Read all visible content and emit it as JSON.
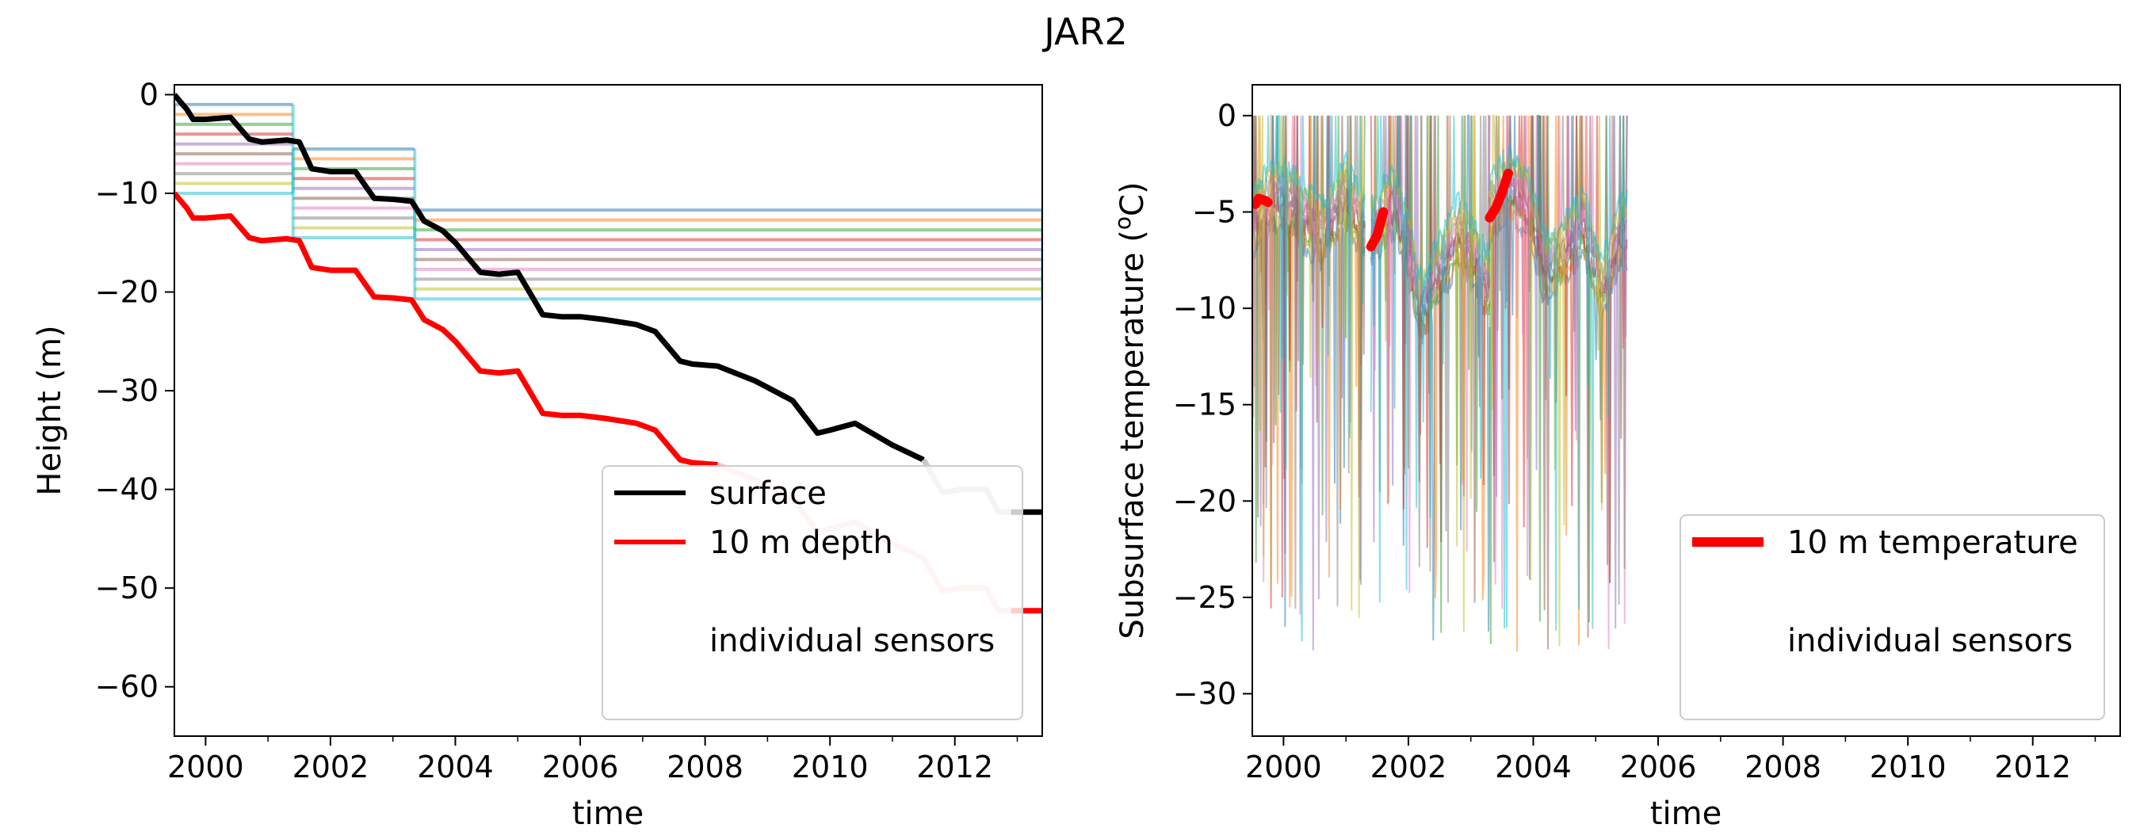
{
  "figure": {
    "title": "JAR2"
  },
  "chart_data": [
    {
      "type": "line",
      "title": "",
      "xlabel": "time",
      "ylabel": "Height (m)",
      "xlim": [
        1999.5,
        2013.4
      ],
      "ylim": [
        -65,
        1
      ],
      "x_ticks": [
        "2000",
        "2002",
        "2004",
        "2006",
        "2008",
        "2010",
        "2012"
      ],
      "y_ticks": [
        "0",
        "−10",
        "−20",
        "−30",
        "−40",
        "−50",
        "−60"
      ],
      "grid": false,
      "legend": {
        "placement": "lower-right",
        "entries": [
          {
            "label": "surface",
            "color": "#000000"
          },
          {
            "label": "10 m depth",
            "color": "#ff0000"
          },
          {
            "label": "individual sensors",
            "color": ""
          }
        ]
      },
      "series": [
        {
          "name": "surface",
          "color": "#000000",
          "x": [
            1999.5,
            1999.7,
            1999.8,
            2000.0,
            2000.4,
            2000.7,
            2000.9,
            2001.3,
            2001.5,
            2001.7,
            2002.0,
            2002.4,
            2002.7,
            2003.0,
            2003.3,
            2003.5,
            2003.8,
            2004.0,
            2004.4,
            2004.7,
            2005.0,
            2005.4,
            2005.7,
            2006.0,
            2006.4,
            2006.9,
            2007.2,
            2007.6,
            2007.8,
            2008.2,
            2008.8,
            2009.4,
            2009.8,
            2010.0,
            2010.4,
            2011.0,
            2011.5
          ],
          "y": [
            0,
            -1.5,
            -2.5,
            -2.5,
            -2.3,
            -4.5,
            -4.8,
            -4.6,
            -4.8,
            -7.5,
            -7.8,
            -7.8,
            -10.5,
            -10.6,
            -10.8,
            -12.8,
            -13.8,
            -15.0,
            -18.0,
            -18.2,
            -18.0,
            -22.3,
            -22.5,
            -22.5,
            -22.8,
            -23.3,
            -24.0,
            -27.0,
            -27.3,
            -27.5,
            -29.0,
            -31.0,
            -34.3,
            -34.0,
            -33.3,
            -35.5,
            -37.0
          ]
        },
        {
          "name": "surface (gap-filled)",
          "color": "#c8c8c8",
          "x": [
            2011.5,
            2011.8,
            2012.1,
            2012.5,
            2012.7,
            2012.9
          ],
          "y": [
            -37.0,
            -40.3,
            -40.0,
            -40.0,
            -42.3,
            -42.3
          ]
        },
        {
          "name": "surface (extrapolated)",
          "color": "#000000",
          "x": [
            2012.9,
            2013.4
          ],
          "y": [
            -42.3,
            -42.3
          ]
        },
        {
          "name": "10 m depth",
          "color": "#ff0000",
          "x": [
            1999.5,
            1999.7,
            1999.8,
            2000.0,
            2000.4,
            2000.7,
            2000.9,
            2001.3,
            2001.5,
            2001.7,
            2002.0,
            2002.4,
            2002.7,
            2003.0,
            2003.3,
            2003.5,
            2003.8,
            2004.0,
            2004.4,
            2004.7,
            2005.0,
            2005.4,
            2005.7,
            2006.0,
            2006.4,
            2006.9,
            2007.2,
            2007.6,
            2007.8,
            2008.2
          ],
          "y": [
            -10.0,
            -11.5,
            -12.5,
            -12.5,
            -12.3,
            -14.5,
            -14.8,
            -14.6,
            -14.8,
            -17.5,
            -17.8,
            -17.8,
            -20.5,
            -20.6,
            -20.8,
            -22.8,
            -23.8,
            -25.0,
            -28.0,
            -28.2,
            -28.0,
            -32.3,
            -32.5,
            -32.5,
            -32.8,
            -33.3,
            -34.0,
            -37.0,
            -37.3,
            -37.5
          ]
        },
        {
          "name": "10 m depth (gap-filled)",
          "color": "#ffc8c8",
          "x": [
            2008.2,
            2008.8,
            2009.4,
            2009.8,
            2010.0,
            2010.4,
            2011.0,
            2011.5,
            2011.8,
            2012.1,
            2012.5,
            2012.7,
            2012.9
          ],
          "y": [
            -37.5,
            -39.0,
            -41.0,
            -44.3,
            -44.0,
            -43.3,
            -45.5,
            -47.0,
            -50.3,
            -50.0,
            -50.0,
            -52.3,
            -52.3
          ]
        },
        {
          "name": "10 m depth (extrapolated)",
          "color": "#ff0000",
          "x": [
            2012.9,
            2013.4
          ],
          "y": [
            -52.3,
            -52.3
          ]
        }
      ],
      "sensor_groups": [
        {
          "x_start": 1999.5,
          "x_end": 2001.4,
          "depths": [
            -1.0,
            -2.0,
            -3.0,
            -4.0,
            -5.0,
            -6.0,
            -7.0,
            -8.0,
            -9.0,
            -10.0
          ]
        },
        {
          "x_start": 2001.4,
          "x_end": 2003.35,
          "depths": [
            -5.5,
            -6.5,
            -7.5,
            -8.5,
            -9.5,
            -10.5,
            -11.5,
            -12.5,
            -13.5,
            -14.5
          ]
        },
        {
          "x_start": 2003.35,
          "x_end": 2013.4,
          "depths": [
            -11.7,
            -12.7,
            -13.7,
            -14.7,
            -15.7,
            -16.7,
            -17.7,
            -18.7,
            -19.7,
            -20.7
          ]
        }
      ],
      "sensor_colors": [
        "#1f77b4",
        "#ff7f0e",
        "#2ca02c",
        "#d62728",
        "#9467bd",
        "#8c564b",
        "#e377c2",
        "#7f7f7f",
        "#bcbd22",
        "#17becf"
      ]
    },
    {
      "type": "line",
      "title": "",
      "xlabel": "time",
      "ylabel": "Subsurface temperature (°C)",
      "ylabel_parts": [
        "Subsurface temperature (",
        "o",
        "C)"
      ],
      "xlim": [
        1999.5,
        2013.4
      ],
      "ylim": [
        -32.2,
        1.6
      ],
      "x_ticks": [
        "2000",
        "2002",
        "2004",
        "2006",
        "2008",
        "2010",
        "2012"
      ],
      "y_ticks": [
        "0",
        "−5",
        "−10",
        "−15",
        "−20",
        "−25",
        "−30"
      ],
      "grid": false,
      "legend": {
        "placement": "lower-right",
        "entries": [
          {
            "label": "10 m temperature",
            "color": "#ff0000"
          },
          {
            "label": "individual sensors",
            "color": ""
          }
        ]
      },
      "series": [
        {
          "name": "10 m temperature",
          "color": "#ff0000",
          "segments": [
            {
              "x": [
                1999.55,
                1999.6,
                1999.7,
                1999.75
              ],
              "y": [
                -4.6,
                -4.3,
                -4.4,
                -4.5
              ]
            },
            {
              "x": [
                2001.4,
                2001.5,
                2001.6
              ],
              "y": [
                -6.8,
                -6.2,
                -5.0
              ]
            },
            {
              "x": [
                2003.3,
                2003.4,
                2003.5,
                2003.6
              ],
              "y": [
                -5.3,
                -4.8,
                -4.0,
                -3.0
              ]
            }
          ]
        }
      ],
      "sensor_seasons": [
        {
          "x_start": 1999.5,
          "x_end": 2001.3,
          "x_base": [
            1999.5,
            1999.8,
            2000.0,
            2000.3,
            2000.6,
            2000.8,
            2001.0,
            2001.25
          ],
          "y_base": [
            -5.5,
            -4.2,
            -4.0,
            -5.0,
            -6.0,
            -5.2,
            -4.0,
            -5.5
          ]
        },
        {
          "x_start": 2001.4,
          "x_end": 2003.3,
          "x_base": [
            2001.4,
            2001.6,
            2001.8,
            2002.0,
            2002.2,
            2002.5,
            2002.8,
            2003.1,
            2003.3
          ],
          "y_base": [
            -6.0,
            -5.0,
            -4.5,
            -7.0,
            -10.0,
            -8.0,
            -6.0,
            -7.5,
            -9.0
          ]
        },
        {
          "x_start": 2003.3,
          "x_end": 2005.5,
          "x_base": [
            2003.3,
            2003.6,
            2003.9,
            2004.2,
            2004.5,
            2004.8,
            2005.1,
            2005.4
          ],
          "y_base": [
            -5.0,
            -3.5,
            -4.5,
            -8.0,
            -7.0,
            -5.5,
            -9.0,
            -6.0
          ]
        }
      ],
      "sensor_colors": [
        "#1f77b4",
        "#ff7f0e",
        "#2ca02c",
        "#d62728",
        "#9467bd",
        "#8c564b",
        "#e377c2",
        "#7f7f7f",
        "#bcbd22",
        "#17becf"
      ]
    }
  ]
}
